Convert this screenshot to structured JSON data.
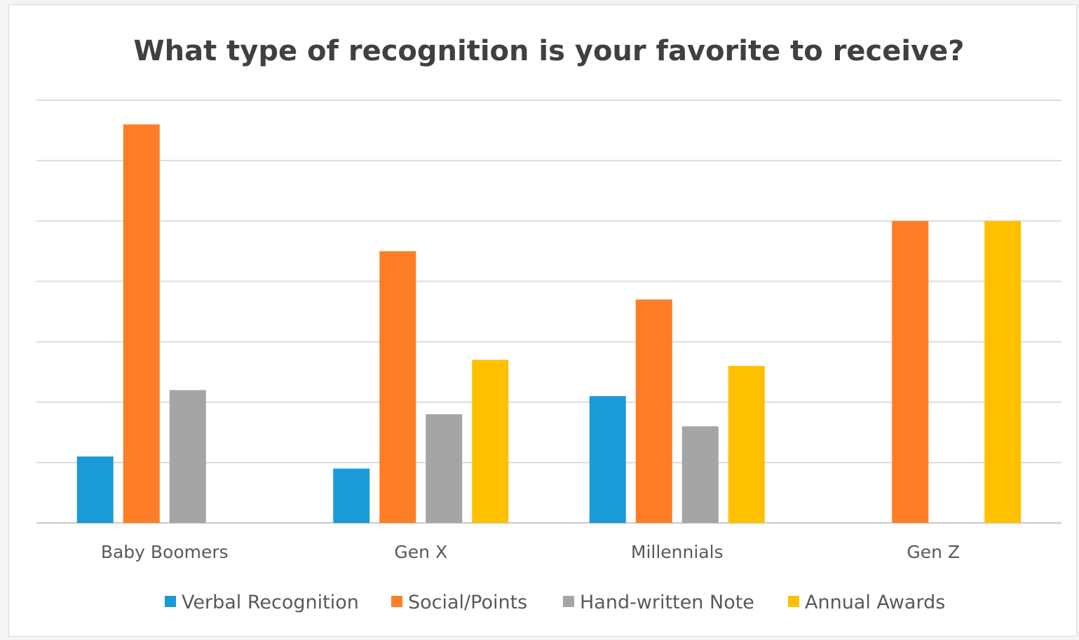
{
  "chart_data": {
    "type": "bar",
    "title": "What type of recognition is your favorite to receive?",
    "xlabel": "",
    "ylabel": "",
    "categories": [
      "Baby Boomers",
      "Gen X",
      "Millennials",
      "Gen Z"
    ],
    "series": [
      {
        "name": "Verbal Recognition",
        "color": "#1a9ad6",
        "values": [
          1.1,
          0.9,
          2.1,
          0
        ]
      },
      {
        "name": "Social/Points",
        "color": "#fd7e26",
        "values": [
          6.6,
          4.5,
          3.7,
          5
        ]
      },
      {
        "name": "Hand-written Note",
        "color": "#a5a5a5",
        "values": [
          2.2,
          1.8,
          1.6,
          0
        ]
      },
      {
        "name": "Annual Awards",
        "color": "#ffc000",
        "values": [
          0,
          2.7,
          2.6,
          5
        ]
      }
    ],
    "ylim": [
      0,
      7
    ],
    "y_ticks_labeled": false,
    "grid": true,
    "legend": "bottom"
  }
}
